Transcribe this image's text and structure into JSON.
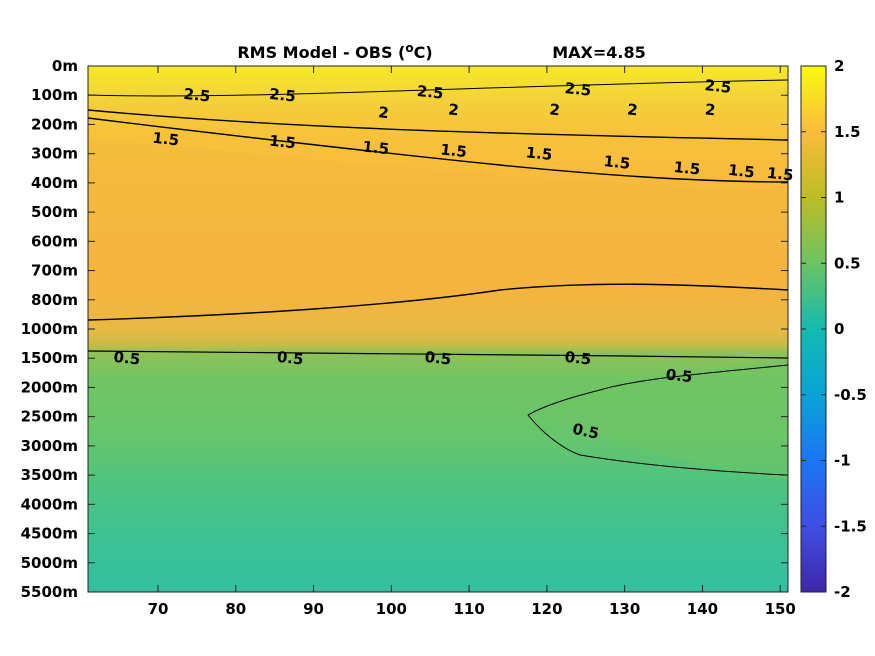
{
  "chart_data": {
    "type": "heatmap",
    "title": "RMS Model - OBS (°C)",
    "title_parts": {
      "prefix": "RMS Model - OBS (",
      "sup": "o",
      "suffix": "C)"
    },
    "annotation": "MAX=4.85",
    "x_ticks": [
      "70",
      "80",
      "90",
      "100",
      "110",
      "120",
      "130",
      "140",
      "150"
    ],
    "x_values": [
      70,
      80,
      90,
      100,
      110,
      120,
      130,
      140,
      150
    ],
    "xlim": [
      61,
      151
    ],
    "y_ticks": [
      "0m",
      "100m",
      "200m",
      "300m",
      "400m",
      "500m",
      "600m",
      "700m",
      "800m",
      "1000m",
      "1500m",
      "2000m",
      "2500m",
      "3000m",
      "3500m",
      "4000m",
      "4500m",
      "5000m",
      "5500m"
    ],
    "colorbar": {
      "ticks": [
        "2",
        "1.5",
        "1",
        "0.5",
        "0",
        "-0.5",
        "-1",
        "-1.5",
        "-2"
      ],
      "tick_values": [
        2,
        1.5,
        1,
        0.5,
        0,
        -0.5,
        -1,
        -1.5,
        -2
      ],
      "range": [
        -2,
        2
      ],
      "colormap": "parula"
    },
    "contour_labels": [
      {
        "text": "1.5",
        "x": 71,
        "depth": "250m"
      },
      {
        "text": "1.5",
        "x": 86,
        "depth": "260m"
      },
      {
        "text": "1.5",
        "x": 98,
        "depth": "280m"
      },
      {
        "text": "1.5",
        "x": 108,
        "depth": "290m"
      },
      {
        "text": "1.5",
        "x": 119,
        "depth": "300m"
      },
      {
        "text": "1.5",
        "x": 129,
        "depth": "330m"
      },
      {
        "text": "1.5",
        "x": 138,
        "depth": "350m"
      },
      {
        "text": "1.5",
        "x": 145,
        "depth": "360m"
      },
      {
        "text": "1.5",
        "x": 150,
        "depth": "370m"
      },
      {
        "text": "2",
        "x": 99,
        "depth": "160m"
      },
      {
        "text": "2",
        "x": 108,
        "depth": "150m"
      },
      {
        "text": "2",
        "x": 121,
        "depth": "150m"
      },
      {
        "text": "2",
        "x": 131,
        "depth": "150m"
      },
      {
        "text": "2",
        "x": 141,
        "depth": "150m"
      },
      {
        "text": "2.5",
        "x": 75,
        "depth": "100m"
      },
      {
        "text": "2.5",
        "x": 86,
        "depth": "100m"
      },
      {
        "text": "2.5",
        "x": 105,
        "depth": "90m"
      },
      {
        "text": "2.5",
        "x": 124,
        "depth": "80m"
      },
      {
        "text": "2.5",
        "x": 142,
        "depth": "70m"
      },
      {
        "text": "0.5",
        "x": 66,
        "depth": "1500m"
      },
      {
        "text": "0.5",
        "x": 87,
        "depth": "1500m"
      },
      {
        "text": "0.5",
        "x": 106,
        "depth": "1500m"
      },
      {
        "text": "0.5",
        "x": 124,
        "depth": "1500m"
      },
      {
        "text": "0.5",
        "x": 125,
        "depth": "2750m"
      },
      {
        "text": "0.5",
        "x": 137,
        "depth": "1800m"
      }
    ]
  }
}
